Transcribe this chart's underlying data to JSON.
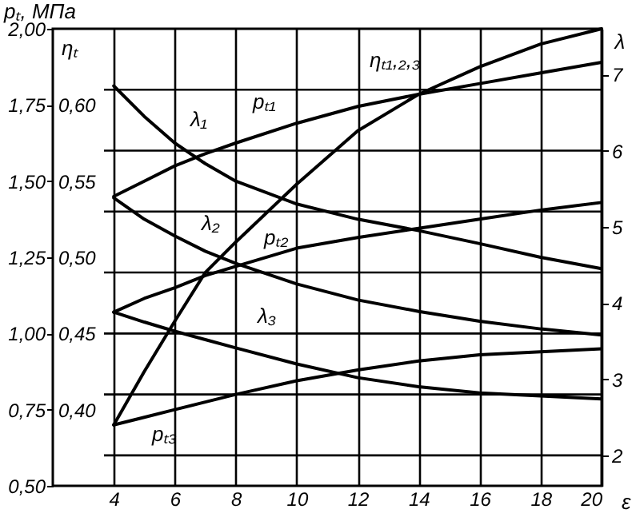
{
  "chart_data": {
    "type": "line",
    "xlabel": "ε",
    "ylabel": "pₜ, МПа",
    "y2label": "λ",
    "y3label": "ηₜ",
    "x": [
      4,
      5,
      6,
      7,
      8,
      10,
      12,
      14,
      16,
      18,
      20
    ],
    "xlim": [
      2,
      20
    ],
    "xticks": [
      4,
      6,
      8,
      10,
      12,
      14,
      16,
      18,
      20
    ],
    "ylim": [
      0.5,
      2.0
    ],
    "yticks": [
      {
        "value": 0.5,
        "label": "0,50"
      },
      {
        "value": 0.75,
        "label": "0,75"
      },
      {
        "value": 1.0,
        "label": "1,00"
      },
      {
        "value": 1.25,
        "label": "1,25"
      },
      {
        "value": 1.5,
        "label": "1,50"
      },
      {
        "value": 1.75,
        "label": "1,75"
      },
      {
        "value": 2.0,
        "label": "2,00"
      }
    ],
    "y2lim": [
      1.6,
      7.6
    ],
    "y2ticks": [
      2,
      3,
      4,
      5,
      6,
      7
    ],
    "y3lim": [
      0.35,
      0.65
    ],
    "y3ticks": [
      {
        "value": 0.4,
        "label": "0,40"
      },
      {
        "value": 0.45,
        "label": "0,45"
      },
      {
        "value": 0.5,
        "label": "0,50"
      },
      {
        "value": 0.55,
        "label": "0,55"
      },
      {
        "value": 0.6,
        "label": "0,60"
      }
    ],
    "grid": "x",
    "ref_lines": [
      {
        "axis": "y",
        "value": 0.6
      },
      {
        "axis": "y",
        "value": 0.8
      },
      {
        "axis": "y",
        "value": 1.0
      },
      {
        "axis": "y",
        "value": 1.2
      },
      {
        "axis": "y",
        "value": 1.4
      },
      {
        "axis": "y",
        "value": 1.6
      },
      {
        "axis": "y",
        "value": 1.8
      }
    ],
    "series": [
      {
        "name": "ηₜ₁,₂,₃",
        "color": "#000000",
        "axis": "y3",
        "values": [
          0.39,
          0.425,
          0.458,
          0.49,
          0.51,
          0.548,
          0.583,
          0.607,
          0.625,
          0.64,
          0.65
        ]
      },
      {
        "name": "pₜ₁",
        "color": "#000000",
        "values": [
          1.45,
          1.5,
          1.55,
          1.59,
          1.625,
          1.69,
          1.745,
          1.785,
          1.82,
          1.855,
          1.89
        ]
      },
      {
        "name": "pₜ₂",
        "color": "#000000",
        "values": [
          1.07,
          1.115,
          1.15,
          1.19,
          1.22,
          1.28,
          1.315,
          1.345,
          1.375,
          1.405,
          1.43
        ]
      },
      {
        "name": "pₜ₃",
        "color": "#000000",
        "values": [
          0.7,
          0.725,
          0.75,
          0.775,
          0.8,
          0.845,
          0.88,
          0.91,
          0.93,
          0.94,
          0.95
        ]
      },
      {
        "name": "λ₁",
        "color": "#000000",
        "axis": "y2",
        "values": [
          6.85,
          6.45,
          6.1,
          5.83,
          5.6,
          5.3,
          5.1,
          4.95,
          4.78,
          4.6,
          4.45
        ]
      },
      {
        "name": "λ₂",
        "color": "#000000",
        "axis": "y2",
        "values": [
          5.38,
          5.1,
          4.88,
          4.68,
          4.52,
          4.25,
          4.04,
          3.89,
          3.76,
          3.66,
          3.58
        ]
      },
      {
        "name": "λ₃",
        "color": "#000000",
        "axis": "y2",
        "values": [
          3.88,
          3.75,
          3.63,
          3.52,
          3.41,
          3.2,
          3.02,
          2.9,
          2.82,
          2.78,
          2.74
        ]
      }
    ]
  }
}
